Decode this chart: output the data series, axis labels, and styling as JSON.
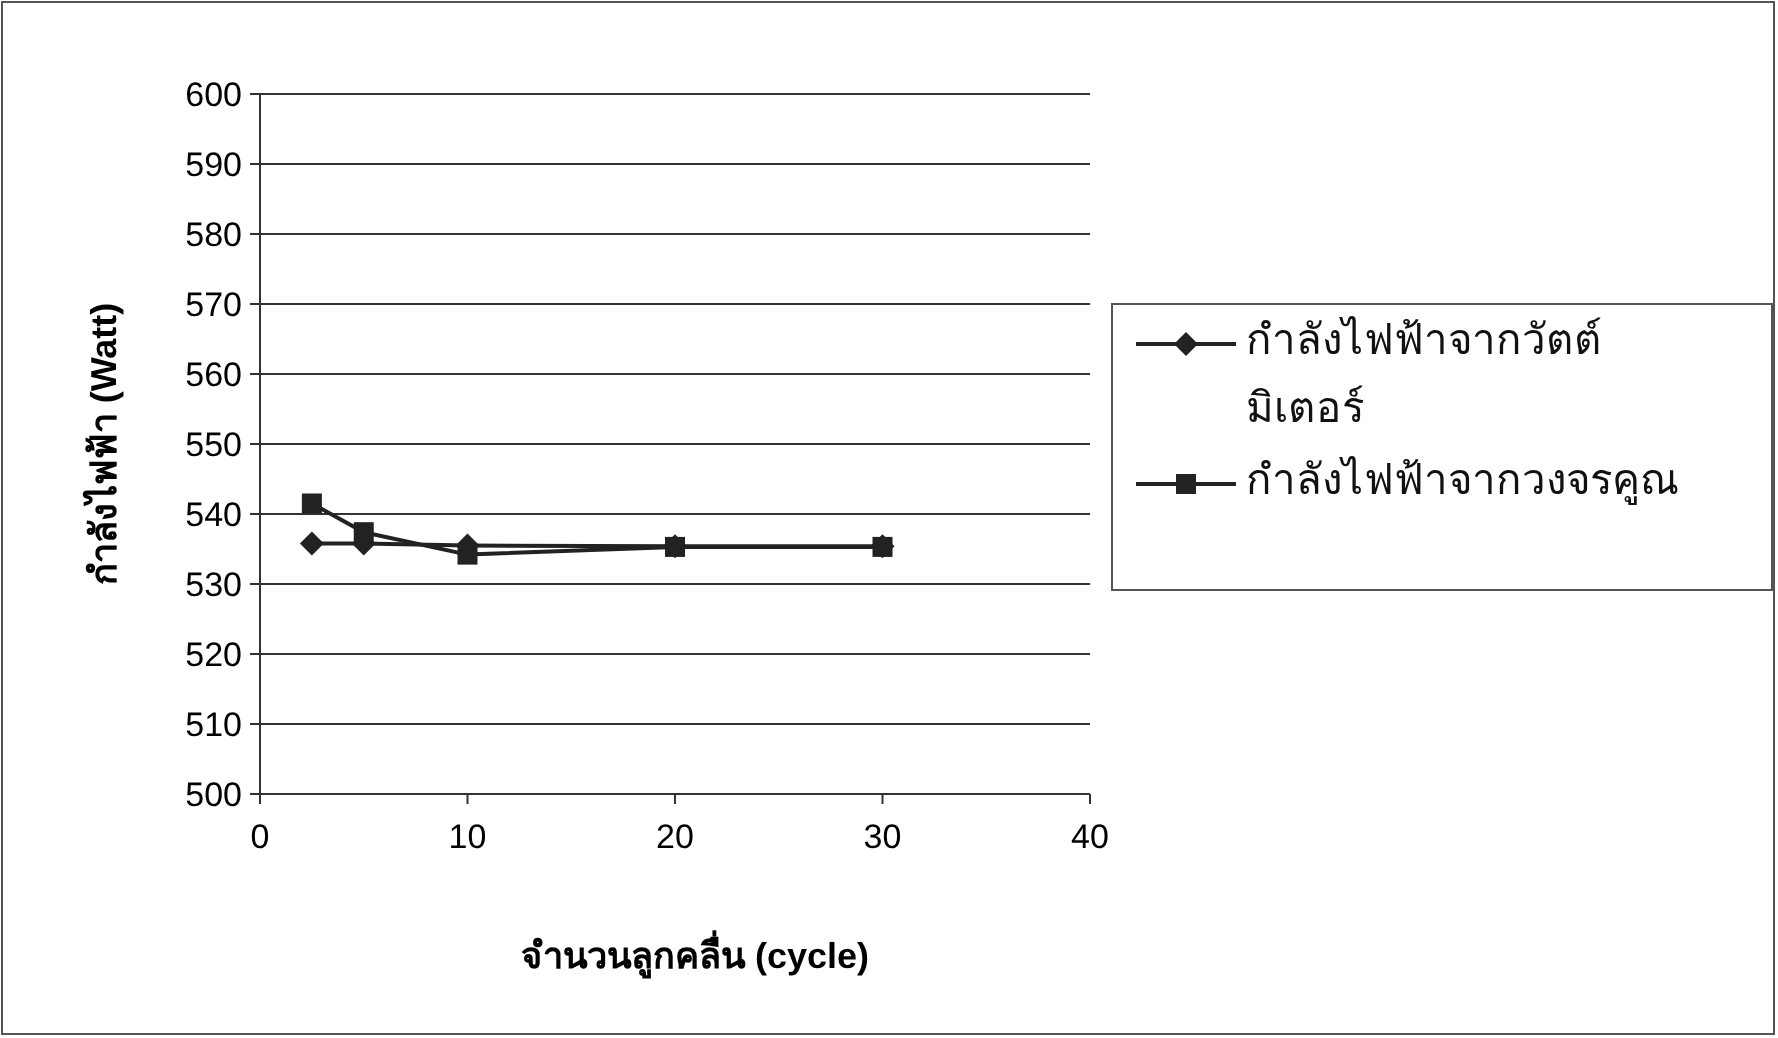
{
  "chart_data": {
    "type": "line",
    "xlabel": "จำนวนลูกคลื่น (cycle)",
    "ylabel": "กำลังไฟฟ้า (Watt)",
    "xlim": [
      0,
      40
    ],
    "xticks": [
      0,
      10,
      20,
      30,
      40
    ],
    "ylim": [
      500,
      600
    ],
    "yticks": [
      500,
      510,
      520,
      530,
      540,
      550,
      560,
      570,
      580,
      590,
      600
    ],
    "grid": "y",
    "legend": "right",
    "line_style": "solid",
    "series": [
      {
        "name": "กำลังไฟฟ้าจากวัตต์มิเตอร์",
        "color": "#222222",
        "marker": "diamond",
        "x": [
          2.5,
          5,
          10,
          20,
          30
        ],
        "values": [
          535.8,
          535.8,
          535.5,
          535.4,
          535.4
        ]
      },
      {
        "name": "กำลังไฟฟ้าจากวงจรคูณ",
        "color": "#222222",
        "marker": "square",
        "x": [
          2.5,
          5,
          10,
          20,
          30
        ],
        "values": [
          541.5,
          537.4,
          534.2,
          535.3,
          535.3
        ]
      }
    ]
  }
}
